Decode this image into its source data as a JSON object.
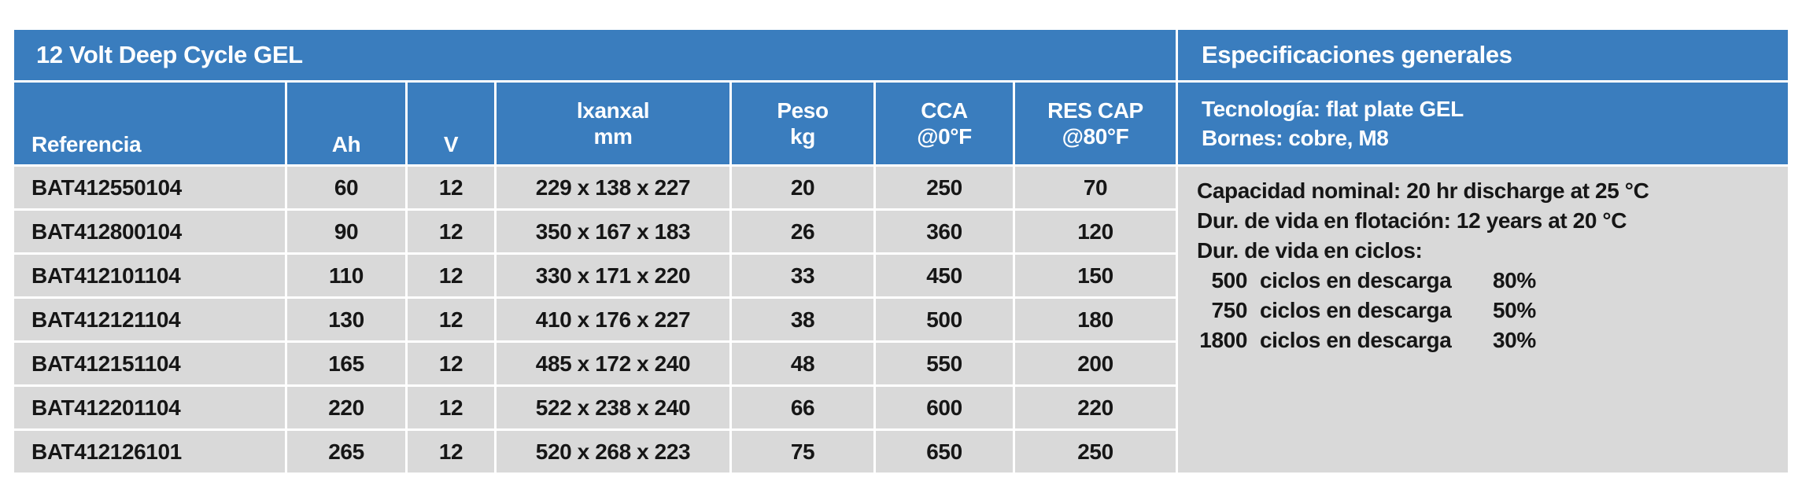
{
  "colors": {
    "header_blue": "#3a7dbe",
    "row_gray": "#d9d9d9"
  },
  "table": {
    "title": "12 Volt Deep Cycle GEL",
    "headers": {
      "referencia": "Referencia",
      "ah": "Ah",
      "v": "V",
      "dim_line1": "lxanxal",
      "dim_line2": "mm",
      "peso_line1": "Peso",
      "peso_line2": "kg",
      "cca_line1": "CCA",
      "cca_line2": "@0°F",
      "rescap_line1": "RES CAP",
      "rescap_line2": "@80°F"
    },
    "rows": [
      [
        "BAT412550104",
        "60",
        "12",
        "229 x 138 x 227",
        "20",
        "250",
        "70"
      ],
      [
        "BAT412800104",
        "90",
        "12",
        "350 x 167 x 183",
        "26",
        "360",
        "120"
      ],
      [
        "BAT412101104",
        "110",
        "12",
        "330 x 171 x 220",
        "33",
        "450",
        "150"
      ],
      [
        "BAT412121104",
        "130",
        "12",
        "410 x 176 x 227",
        "38",
        "500",
        "180"
      ],
      [
        "BAT412151104",
        "165",
        "12",
        "485 x 172 x 240",
        "48",
        "550",
        "200"
      ],
      [
        "BAT412201104",
        "220",
        "12",
        "522 x 238 x 240",
        "66",
        "600",
        "220"
      ],
      [
        "BAT412126101",
        "265",
        "12",
        "520 x 268 x 223",
        "75",
        "650",
        "250"
      ]
    ]
  },
  "specs": {
    "title": "Especificaciones generales",
    "tech_line": "Tecnología: flat plate GEL",
    "bornes_line": "Bornes: cobre, M8",
    "capacity_line": "Capacidad nominal: 20 hr discharge at 25 °C",
    "float_life_line": "Dur. de vida en flotación: 12 years at 20 °C",
    "cycle_life_heading": "Dur. de vida en ciclos:",
    "cycles": [
      {
        "count": "500",
        "label": "ciclos en descarga",
        "depth": "80%"
      },
      {
        "count": "750",
        "label": "ciclos en descarga",
        "depth": "50%"
      },
      {
        "count": "1800",
        "label": "ciclos en descarga",
        "depth": "30%"
      }
    ]
  }
}
